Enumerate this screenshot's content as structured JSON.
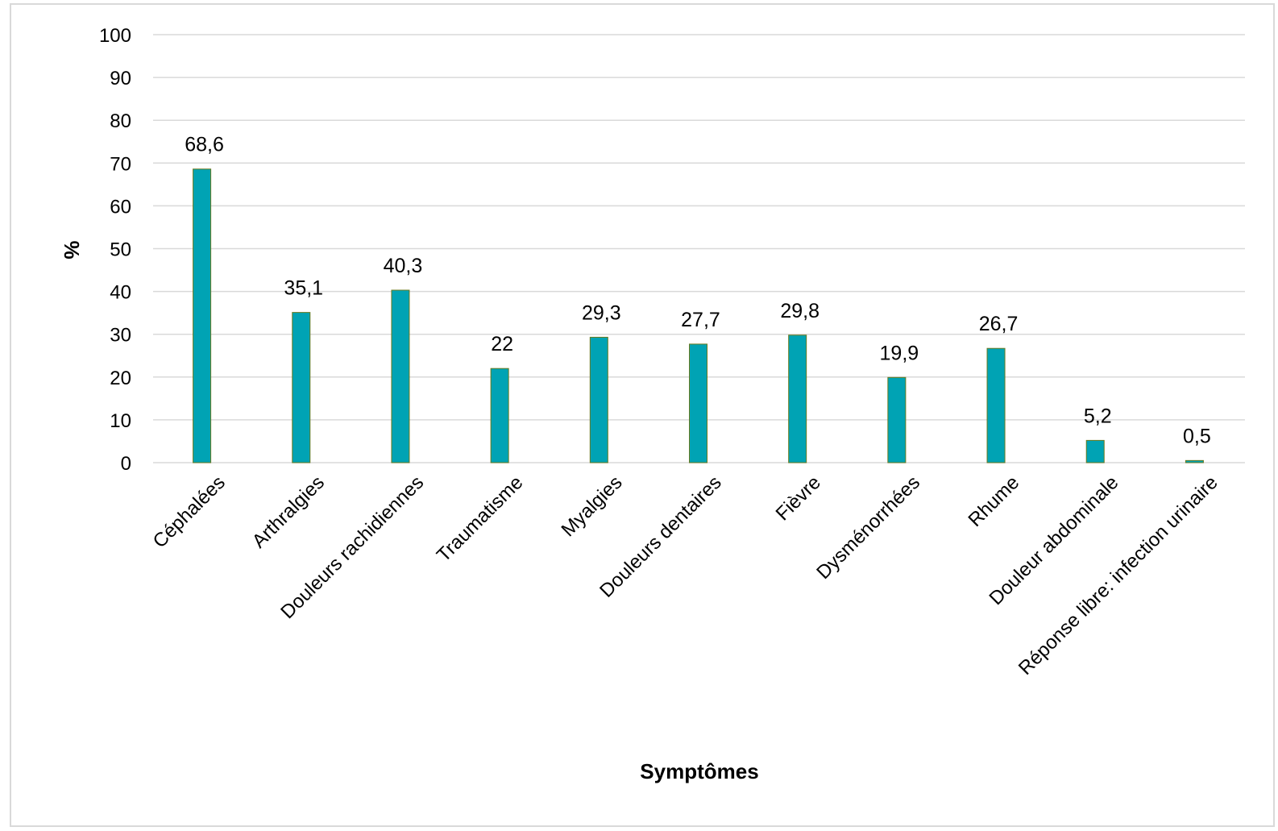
{
  "chart_data": {
    "type": "bar",
    "title": "",
    "xlabel": "Symptômes",
    "ylabel": "%",
    "ylim": [
      0,
      100
    ],
    "yticks": [
      "0",
      "10",
      "20",
      "30",
      "40",
      "50",
      "60",
      "70",
      "80",
      "90",
      "100"
    ],
    "grid": true,
    "legend": "none",
    "categories": [
      "Céphalées",
      "Arthralgies",
      "Douleurs rachidiennes",
      "Traumatisme",
      "Myalgies",
      "Douleurs dentaires",
      "Fièvre",
      "Dysménorrhées",
      "Rhume",
      "Douleur abdominale",
      "Réponse libre: infection urinaire"
    ],
    "values": [
      68.6,
      35.1,
      40.3,
      22,
      29.3,
      27.7,
      29.8,
      19.9,
      26.7,
      5.2,
      0.5
    ],
    "data_labels": [
      "68,6",
      "35,1",
      "40,3",
      "22",
      "29,3",
      "27,7",
      "29,8",
      "19,9",
      "26,7",
      "5,2",
      "0,5"
    ],
    "colors": {
      "bar_fill": "#00A3B4",
      "bar_stroke": "#6a7a1e",
      "grid": "#d9d9d9",
      "frame": "#d9d9d9"
    }
  }
}
